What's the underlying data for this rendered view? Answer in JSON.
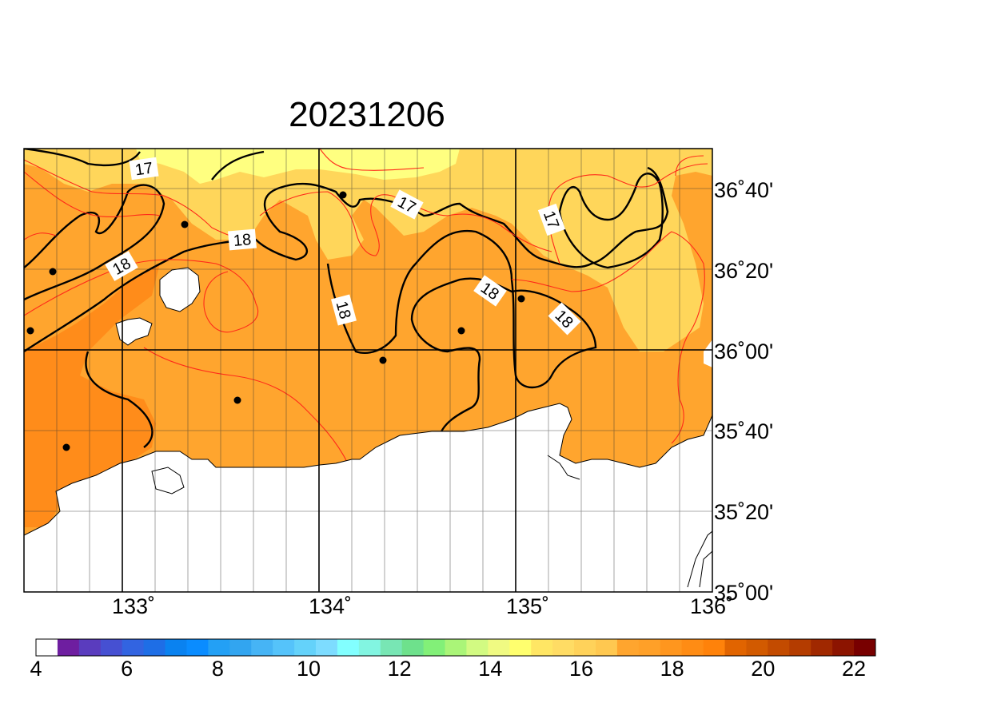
{
  "title": "20231206",
  "map": {
    "lon_ticks": [
      "133˚",
      "134˚",
      "135˚",
      "136˚"
    ],
    "lat_ticks": [
      "36˚40'",
      "36˚20'",
      "36˚00'",
      "35˚40'",
      "35˚20'",
      "35˚00'"
    ],
    "contour_labels": [
      "17",
      "17",
      "17",
      "18",
      "18",
      "18",
      "18",
      "18"
    ],
    "colors": {
      "sea_17": "#ffd65a",
      "sea_16": "#ffff80",
      "sea_18": "#ffa52e",
      "sea_19": "#ff8c1a",
      "land": "#ffffff",
      "contour_major": "#000000",
      "contour_minor": "#ff2a1a"
    }
  },
  "colorbar": {
    "labels": [
      "4",
      "6",
      "8",
      "10",
      "12",
      "14",
      "16",
      "18",
      "20",
      "22"
    ],
    "colors": [
      "#ffffff",
      "#6e1ea0",
      "#5a3cbe",
      "#4650d2",
      "#3264e1",
      "#1e6ee6",
      "#0a82f0",
      "#0a8cff",
      "#23a0f5",
      "#32a5f0",
      "#46b4f5",
      "#55c3fa",
      "#64d2fa",
      "#7ddcff",
      "#82ffff",
      "#82f5e1",
      "#78e6b4",
      "#6ee18c",
      "#82f078",
      "#aaf578",
      "#d2fa82",
      "#f0fa82",
      "#ffff6e",
      "#ffe664",
      "#ffdc64",
      "#ffd25a",
      "#ffc850",
      "#ffa52e",
      "#ffa028",
      "#ff961e",
      "#ff8c14",
      "#ff820a",
      "#e16400",
      "#d25a00",
      "#c34b00",
      "#b43c00",
      "#a02800",
      "#8c1400",
      "#780000"
    ]
  }
}
